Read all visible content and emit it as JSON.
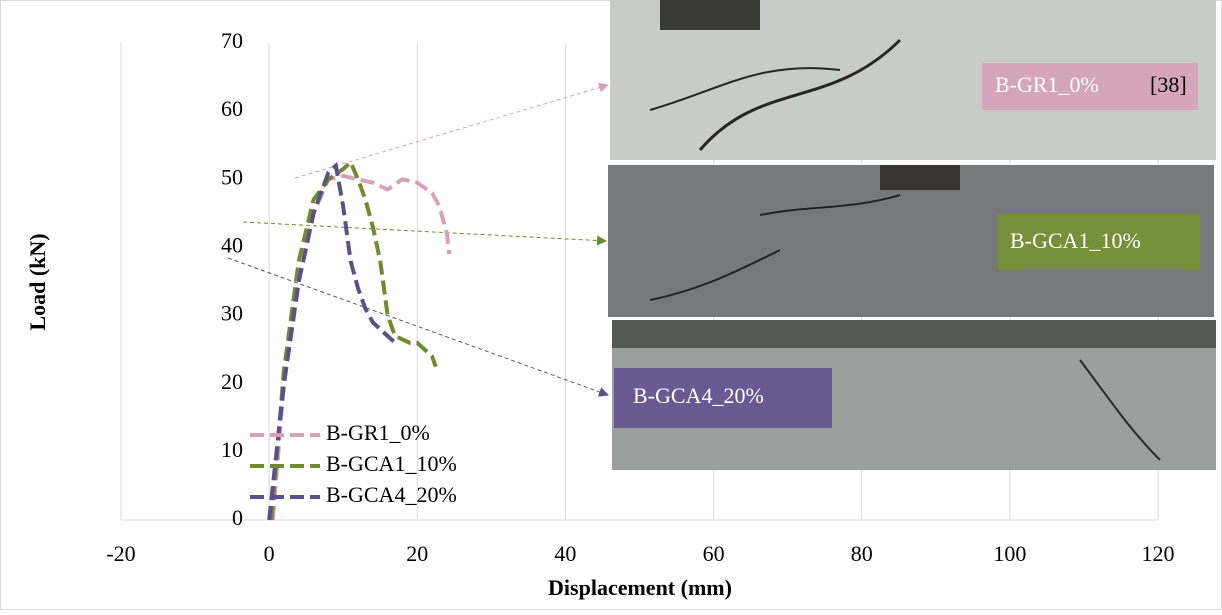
{
  "chart_data": {
    "type": "line",
    "x_label": "Displacement (mm)",
    "y_label": "Load (kN)",
    "xlim": [
      -20,
      120
    ],
    "xticks": [
      -20,
      0,
      20,
      40,
      60,
      80,
      100,
      120
    ],
    "ylim": [
      0,
      70
    ],
    "yticks": [
      0,
      10,
      20,
      30,
      40,
      50,
      60,
      70
    ],
    "grid": true,
    "legend": "lower left",
    "series": [
      {
        "name": "B-GR1_0%",
        "color": "#d89fbb",
        "x": [
          0.5,
          2,
          4,
          6,
          8,
          10,
          12,
          14,
          16,
          18,
          20,
          22,
          23,
          24,
          24.3
        ],
        "values": [
          0,
          20,
          35,
          45,
          50,
          50.5,
          50,
          49.5,
          48.5,
          50,
          49.5,
          48,
          46,
          42,
          39
        ]
      },
      {
        "name": "B-GCA1_10%",
        "color": "#6f8a2f",
        "x": [
          0.3,
          2,
          4,
          6,
          8,
          10,
          11,
          12,
          13,
          14,
          15,
          16,
          17,
          18,
          19,
          20,
          21,
          22,
          22.5
        ],
        "values": [
          0,
          22,
          38,
          47,
          50,
          51.5,
          52.5,
          50,
          47,
          43,
          38,
          30,
          27,
          26.5,
          26,
          26,
          25,
          24,
          22.5
        ]
      },
      {
        "name": "B-GCA4_20%",
        "color": "#5c4f8a",
        "x": [
          0,
          2,
          4,
          6,
          7,
          8,
          9,
          10,
          11,
          12,
          13,
          14,
          15,
          16,
          17
        ],
        "values": [
          0,
          20,
          35,
          45,
          48,
          51,
          52,
          46,
          38,
          34,
          31,
          29,
          28,
          27,
          26
        ]
      }
    ],
    "annotations": [
      "B-GR1_0%",
      "[38]",
      "B-GCA1_10%",
      "B-GCA4_20%"
    ]
  }
}
